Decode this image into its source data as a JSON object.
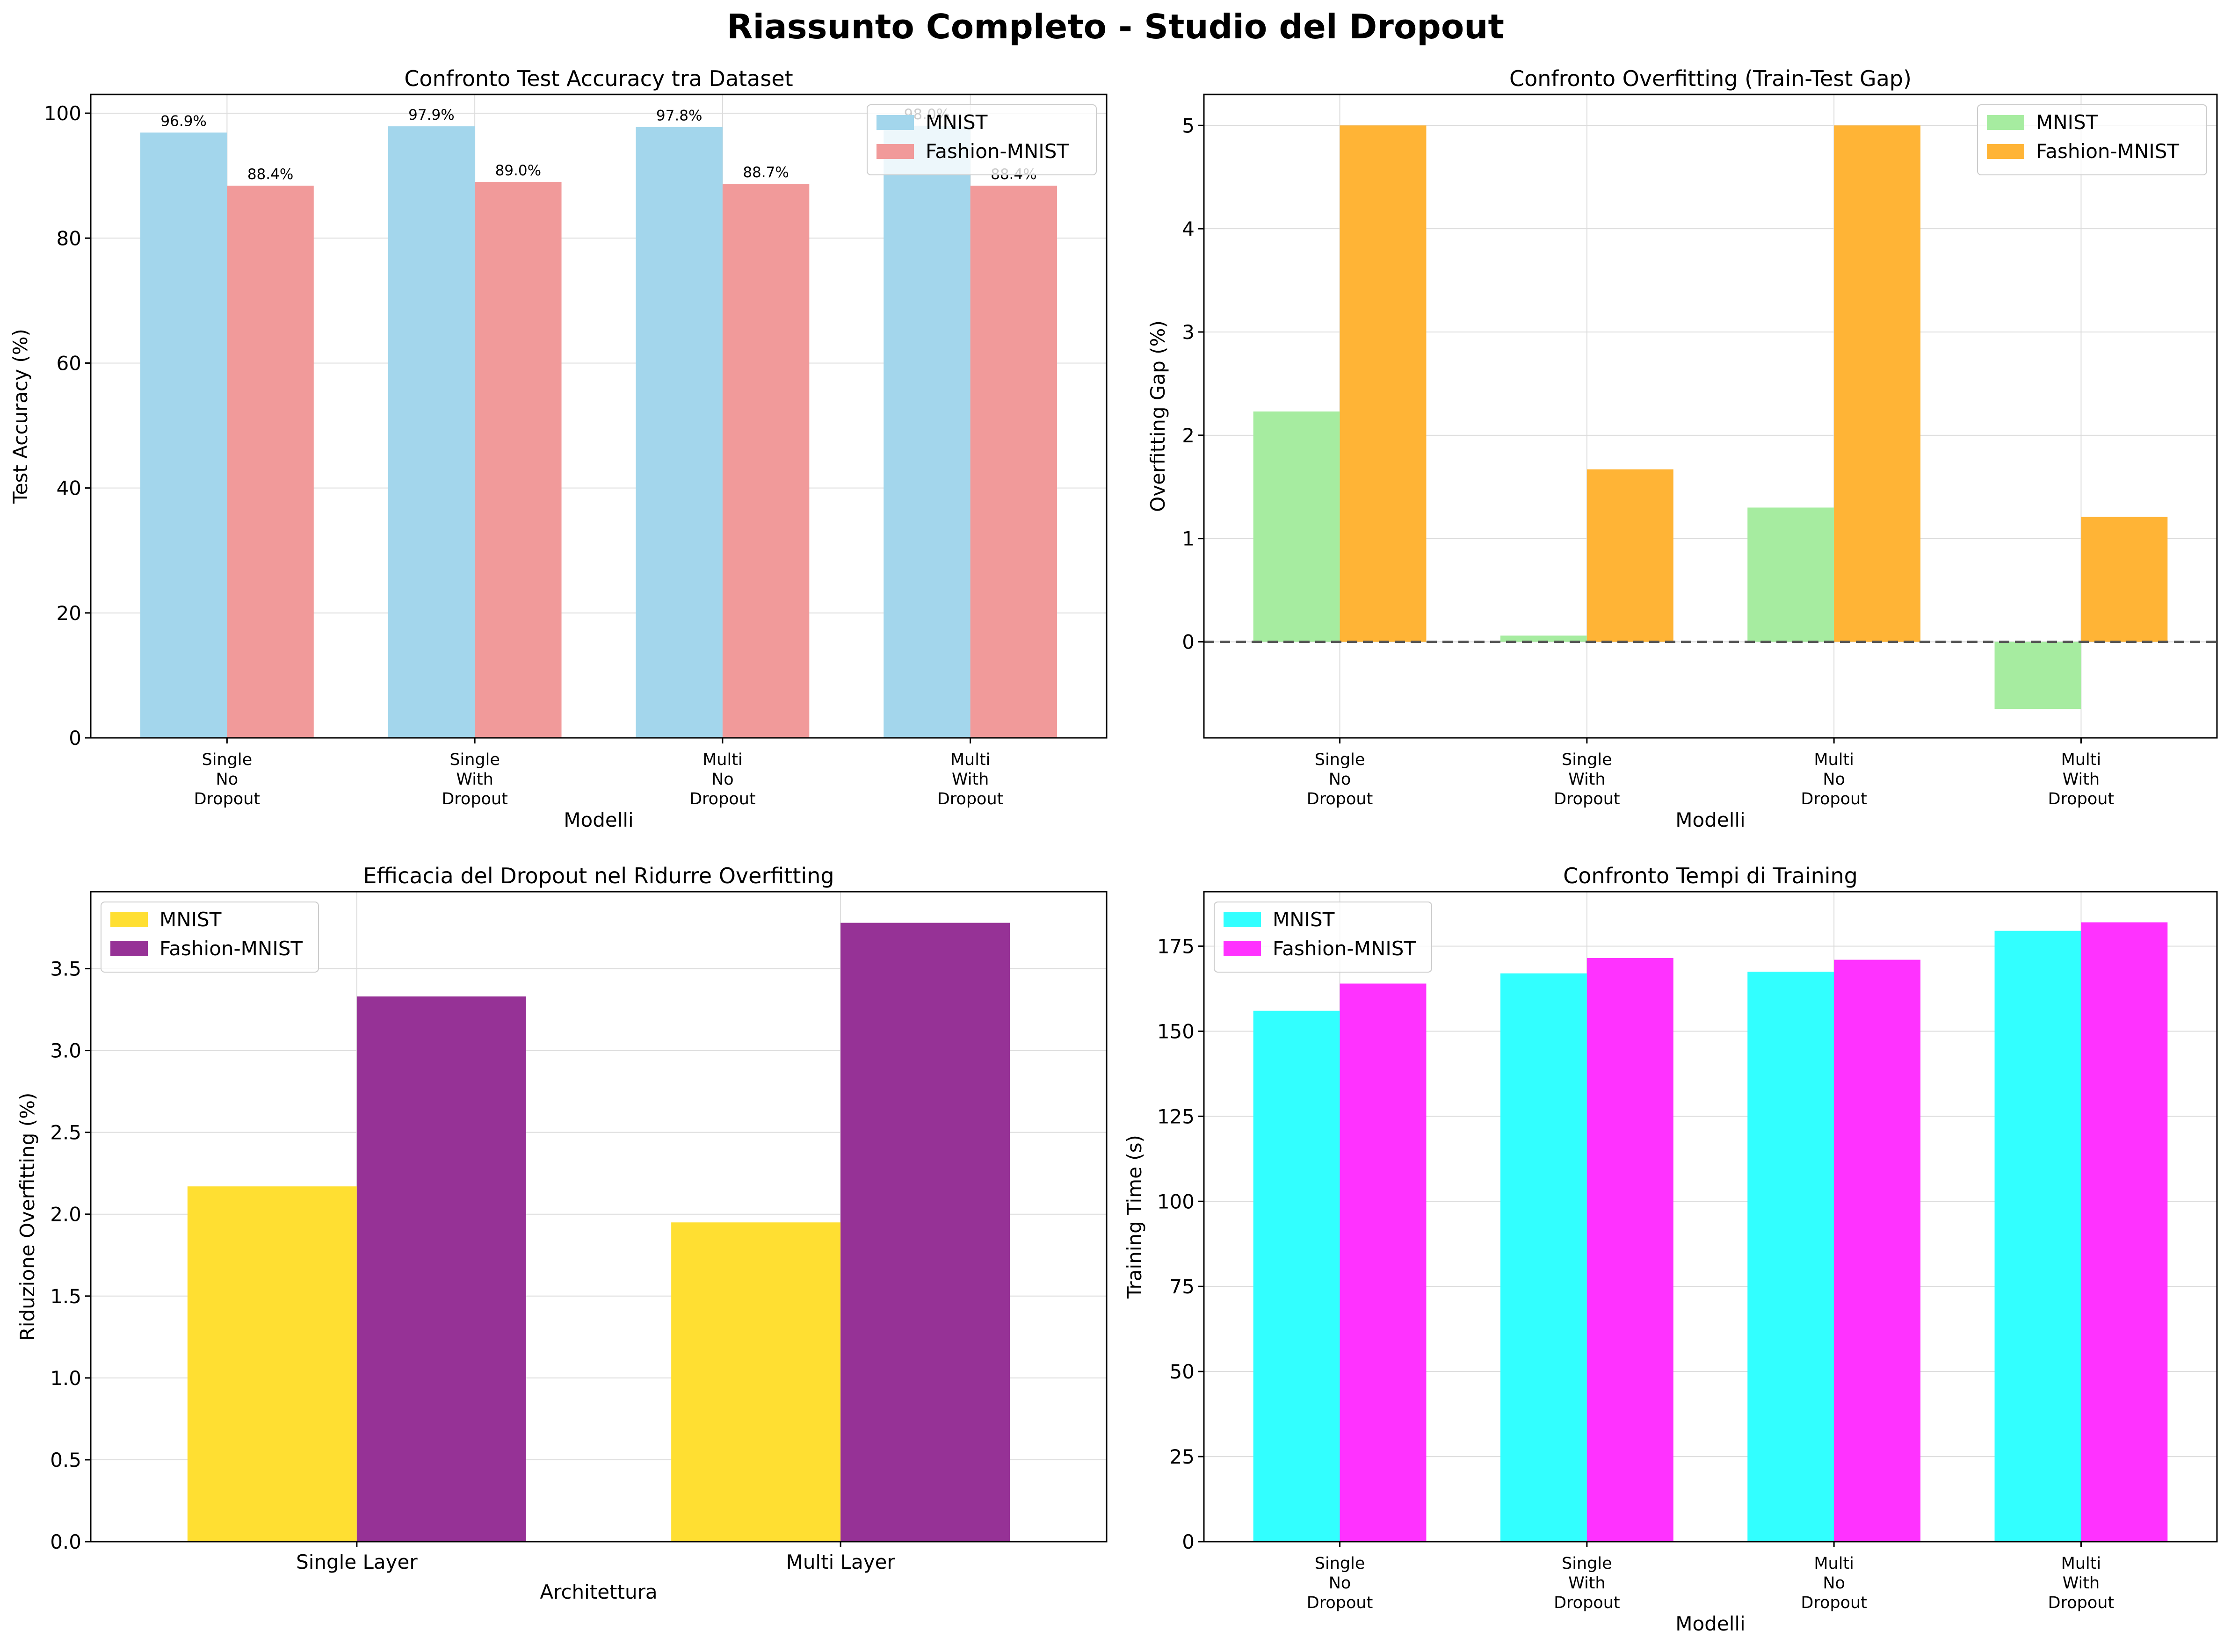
{
  "figure": {
    "suptitle": "Riassunto Completo - Studio del Dropout"
  },
  "colors": {
    "acc_mnist": "#a3d6ec",
    "acc_fashion": "#f19a9a",
    "gap_mnist": "#a6eca0",
    "gap_fashion": "#ffb436",
    "eff_mnist": "#ffdf32",
    "eff_fashion": "#963296",
    "time_mnist": "#32ffff",
    "time_fashion": "#ff32ff"
  },
  "chart_data": [
    {
      "type": "bar",
      "title": "Confronto Test Accuracy tra Dataset",
      "xlabel": "Modelli",
      "ylabel": "Test Accuracy (%)",
      "categories": [
        "Single\nNo\nDropout",
        "Single\nWith\nDropout",
        "Multi\nNo\nDropout",
        "Multi\nWith\nDropout"
      ],
      "series": [
        {
          "name": "MNIST",
          "values": [
            96.9,
            97.9,
            97.8,
            98.0
          ],
          "labels": [
            "96.9%",
            "97.9%",
            "97.8%",
            "98.0%"
          ]
        },
        {
          "name": "Fashion-MNIST",
          "values": [
            88.4,
            89.0,
            88.7,
            88.4
          ],
          "labels": [
            "88.4%",
            "89.0%",
            "88.7%",
            "88.4%"
          ]
        }
      ],
      "ylim": [
        0,
        103
      ],
      "yticks": [
        0,
        20,
        40,
        60,
        80,
        100
      ],
      "grid": true,
      "legend": "top-right"
    },
    {
      "type": "bar",
      "title": "Confronto Overfitting (Train-Test Gap)",
      "xlabel": "Modelli",
      "ylabel": "Overfitting Gap (%)",
      "categories": [
        "Single\nNo\nDropout",
        "Single\nWith\nDropout",
        "Multi\nNo\nDropout",
        "Multi\nWith\nDropout"
      ],
      "series": [
        {
          "name": "MNIST",
          "values": [
            2.23,
            0.06,
            1.3,
            -0.65
          ]
        },
        {
          "name": "Fashion-MNIST",
          "values": [
            5.0,
            1.67,
            5.0,
            1.21
          ]
        }
      ],
      "ylim": [
        -0.93,
        5.3
      ],
      "yticks": [
        0,
        1,
        2,
        3,
        4,
        5
      ],
      "reference_line": 0,
      "grid": true,
      "legend": "top-right"
    },
    {
      "type": "bar",
      "title": "Efficacia del Dropout nel Ridurre Overfitting",
      "xlabel": "Architettura",
      "ylabel": "Riduzione Overfitting (%)",
      "categories": [
        "Single Layer",
        "Multi Layer"
      ],
      "series": [
        {
          "name": "MNIST",
          "values": [
            2.17,
            1.95
          ]
        },
        {
          "name": "Fashion-MNIST",
          "values": [
            3.33,
            3.78
          ]
        }
      ],
      "ylim": [
        0,
        3.97
      ],
      "yticks": [
        "0.0",
        "0.5",
        "1.0",
        "1.5",
        "2.0",
        "2.5",
        "3.0",
        "3.5"
      ],
      "grid": true,
      "legend": "top-left"
    },
    {
      "type": "bar",
      "title": "Confronto Tempi di Training",
      "xlabel": "Modelli",
      "ylabel": "Training Time (s)",
      "categories": [
        "Single\nNo\nDropout",
        "Single\nWith\nDropout",
        "Multi\nNo\nDropout",
        "Multi\nWith\nDropout"
      ],
      "series": [
        {
          "name": "MNIST",
          "values": [
            156,
            167,
            167.5,
            179.5
          ]
        },
        {
          "name": "Fashion-MNIST",
          "values": [
            164,
            171.5,
            171,
            182
          ]
        }
      ],
      "ylim": [
        0,
        191
      ],
      "yticks": [
        0,
        25,
        50,
        75,
        100,
        125,
        150,
        175
      ],
      "grid": true,
      "legend": "top-left"
    }
  ]
}
